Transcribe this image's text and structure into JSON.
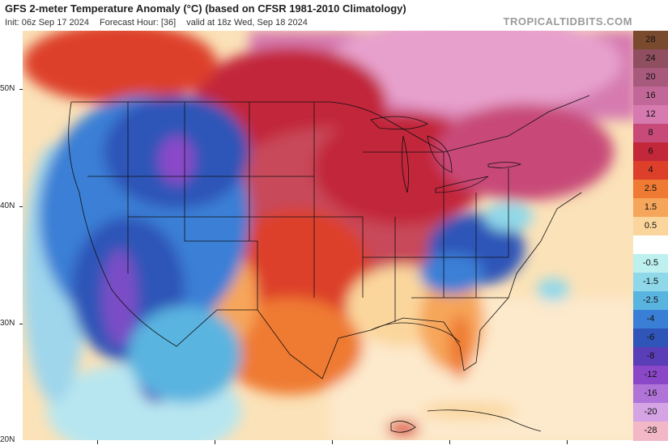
{
  "header": {
    "title": "GFS 2-meter Temperature Anomaly (°C) (based on CFSR 1981-2010 Climatology)",
    "init": "Init: 06z Sep 17 2024",
    "forecast_hour": "Forecast Hour: [36]",
    "valid": "valid at 18z Wed, Sep 18 2024",
    "brand": "TROPICALTIDBITS.COM"
  },
  "map": {
    "lat_labels": [
      "50N",
      "40N",
      "30N",
      "20N"
    ]
  },
  "colorbar": {
    "levels": [
      {
        "label": "28",
        "color": "#7a4a2e"
      },
      {
        "label": "24",
        "color": "#8f4f60"
      },
      {
        "label": "20",
        "color": "#a85a7d"
      },
      {
        "label": "16",
        "color": "#c26899"
      },
      {
        "label": "12",
        "color": "#d67ab0"
      },
      {
        "label": "8",
        "color": "#c84a78"
      },
      {
        "label": "6",
        "color": "#c2283a"
      },
      {
        "label": "4",
        "color": "#dd3f2a"
      },
      {
        "label": "2.5",
        "color": "#ef7a33"
      },
      {
        "label": "1.5",
        "color": "#f6a65a"
      },
      {
        "label": "0.5",
        "color": "#fbd69c"
      },
      {
        "label": "",
        "color": "#ffffff"
      },
      {
        "label": "-0.5",
        "color": "#bdf0ef"
      },
      {
        "label": "-1.5",
        "color": "#8fd8ea"
      },
      {
        "label": "-2.5",
        "color": "#5ab4e0"
      },
      {
        "label": "-4",
        "color": "#3a7fd6"
      },
      {
        "label": "-6",
        "color": "#2f55b8"
      },
      {
        "label": "-8",
        "color": "#5a3eb8"
      },
      {
        "label": "-12",
        "color": "#8a48c8"
      },
      {
        "label": "-16",
        "color": "#b074d8"
      },
      {
        "label": "-20",
        "color": "#d4a4e4"
      },
      {
        "label": "-28",
        "color": "#f2b8c8"
      }
    ]
  }
}
